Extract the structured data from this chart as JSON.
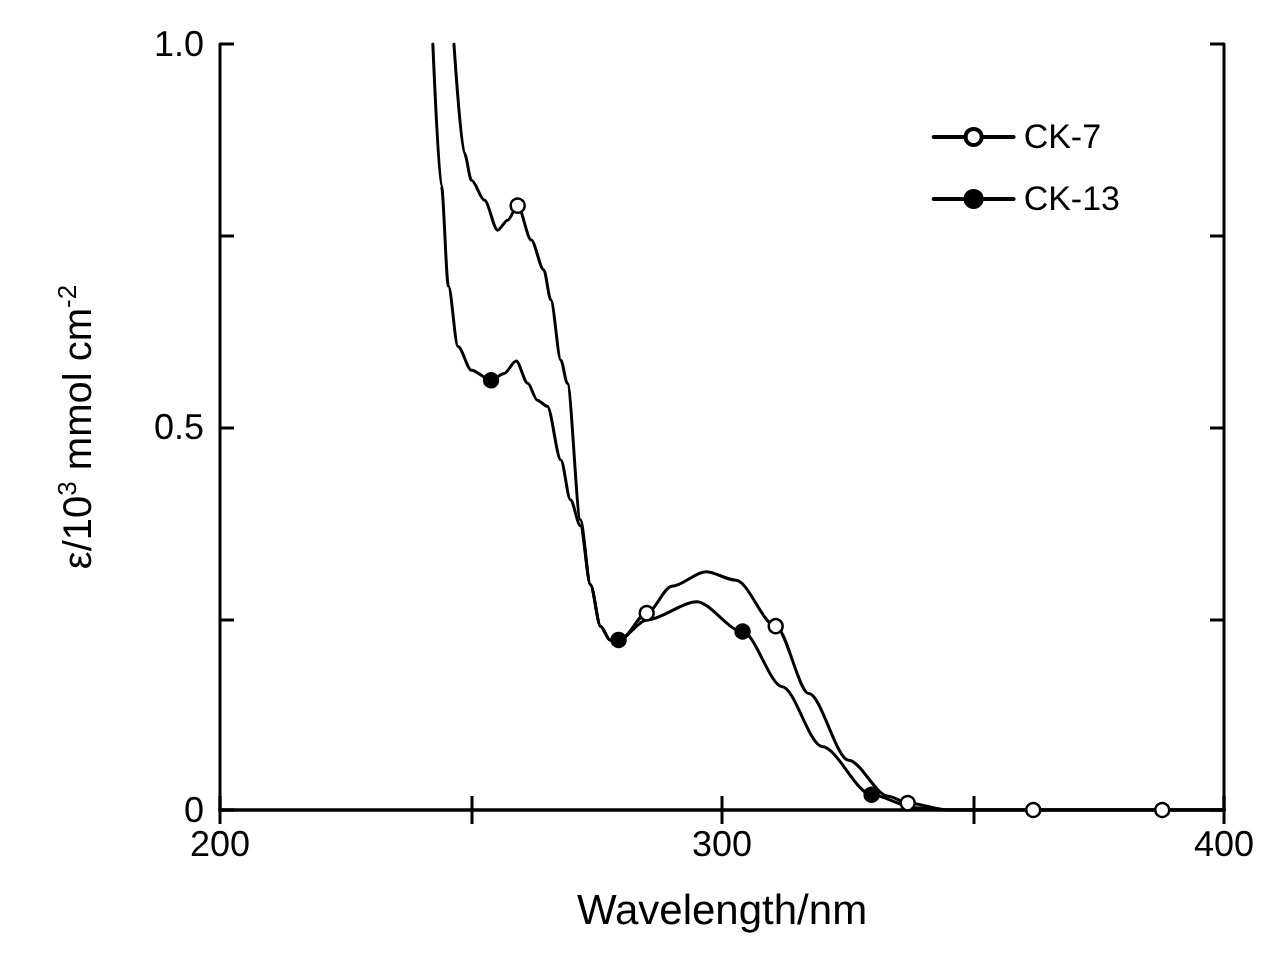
{
  "chart_data": {
    "type": "line",
    "xlabel": "Wavelength/nm",
    "ylabel": "ε/10$^{3}$ mmol cm$^{-2}$",
    "xlim": [
      200,
      400
    ],
    "xticks": [
      200,
      {
        "value": 250,
        "label": null
      },
      300,
      {
        "value": 350,
        "label": null
      },
      400
    ],
    "ylim": [
      0,
      1.0
    ],
    "yticks": [
      0,
      {
        "value": 0.25,
        "label": null
      },
      {
        "value": 0.5,
        "label": "0.5"
      },
      {
        "value": 0.75,
        "label": null
      },
      {
        "value": 1.0,
        "label": "1.0"
      }
    ],
    "grid": false,
    "legend": "top right",
    "marker": "none",
    "series": [
      {
        "name": "CK-7",
        "color": "#000000",
        "x": [
          246.6,
          248.7,
          250.1,
          252.7,
          255.3,
          257.3,
          259.3,
          262,
          264.5,
          265.9,
          267.9,
          269.2,
          271.8,
          273.8,
          275.8,
          277.7,
          279.7,
          285,
          290,
          296.8,
          302.8,
          310.7,
          317.3,
          325.2,
          333.1,
          337,
          345,
          362,
          387.7,
          400
        ],
        "values": [
          1.0,
          0.857,
          0.822,
          0.796,
          0.757,
          0.77,
          0.789,
          0.744,
          0.705,
          0.666,
          0.587,
          0.557,
          0.379,
          0.294,
          0.24,
          0.222,
          0.222,
          0.257,
          0.292,
          0.311,
          0.3,
          0.24,
          0.152,
          0.065,
          0.018,
          0.009,
          0,
          0,
          0,
          0
        ]
      },
      {
        "name": "CK-13",
        "color": "#000000",
        "x": [
          242.4,
          244.1,
          245.5,
          247.4,
          250.1,
          254,
          256.6,
          259,
          261.3,
          263.2,
          265.2,
          267.9,
          269.8,
          271.8,
          273.8,
          275.8,
          277.7,
          279.4,
          285,
          294.9,
          304.1,
          312,
          319.9,
          329.8,
          338.3,
          345,
          400
        ],
        "values": [
          1.0,
          0.815,
          0.684,
          0.605,
          0.574,
          0.561,
          0.57,
          0.586,
          0.557,
          0.535,
          0.527,
          0.457,
          0.405,
          0.371,
          0.294,
          0.24,
          0.222,
          0.222,
          0.248,
          0.272,
          0.233,
          0.161,
          0.083,
          0.02,
          0.003,
          0,
          0
        ]
      },
      {
        "type": "scatter",
        "marker": "circle",
        "color": "#ffffff",
        "x": [
          259.3,
          285,
          310.7,
          337,
          362,
          387.7
        ],
        "values": [
          0.789,
          0.257,
          0.24,
          0.009,
          0,
          0
        ]
      },
      {
        "type": "scatter",
        "marker": "circle",
        "color": "#000000",
        "x": [
          254,
          279.4,
          304.1,
          329.8
        ],
        "values": [
          0.561,
          0.222,
          0.233,
          0.02
        ]
      }
    ]
  }
}
